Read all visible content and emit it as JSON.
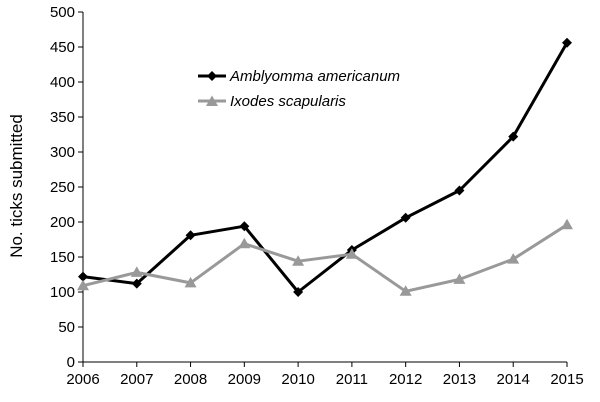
{
  "chart_data": {
    "type": "line",
    "ylabel": "No. ticks submitted",
    "xlabel": "",
    "title": "",
    "x": [
      2006,
      2007,
      2008,
      2009,
      2010,
      2011,
      2012,
      2013,
      2014,
      2015
    ],
    "xlim": [
      2006,
      2015
    ],
    "ylim": [
      0,
      500
    ],
    "yticks": [
      0,
      50,
      100,
      150,
      200,
      250,
      300,
      350,
      400,
      450,
      500
    ],
    "grid": false,
    "legend_position": "top-center",
    "series": [
      {
        "name": "Amblyomma americanum",
        "color": "#000000",
        "marker": "diamond",
        "values": [
          122,
          112,
          181,
          194,
          100,
          160,
          206,
          245,
          322,
          456
        ]
      },
      {
        "name": "Ixodes scapularis",
        "color": "#999999",
        "marker": "triangle",
        "values": [
          109,
          128,
          113,
          169,
          144,
          154,
          101,
          118,
          147,
          196
        ]
      }
    ]
  }
}
